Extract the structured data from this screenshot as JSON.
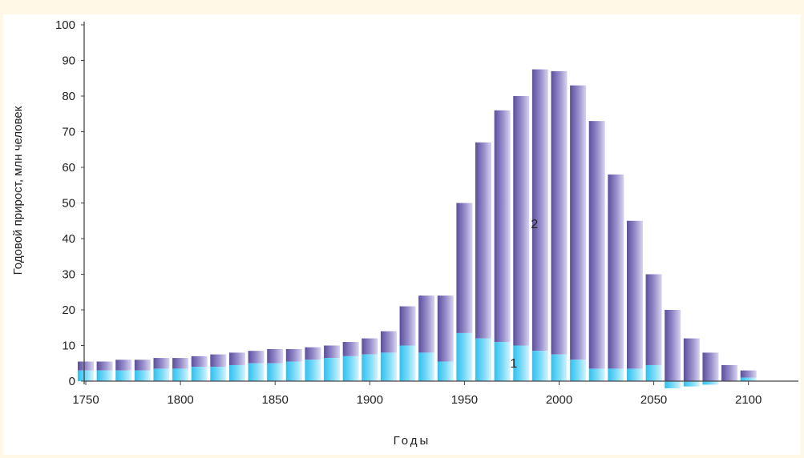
{
  "chart_data": {
    "type": "bar",
    "stacked": true,
    "xlabel": "Годы",
    "ylabel": "Годовой прирост, млн человек",
    "ylim": [
      0,
      100
    ],
    "xlim": [
      1750,
      2125
    ],
    "x_ticks": [
      1750,
      1800,
      1850,
      1900,
      1950,
      2000,
      2050,
      2100
    ],
    "y_ticks": [
      0,
      10,
      20,
      30,
      40,
      50,
      60,
      70,
      80,
      90,
      100
    ],
    "grid": false,
    "legend": "none",
    "series": [
      {
        "name": "1",
        "color": "#5fd0f5"
      },
      {
        "name": "2",
        "color": "#7e72b8"
      }
    ],
    "bars": [
      {
        "x": 1750,
        "s1": 3,
        "total": 5.5
      },
      {
        "x": 1760,
        "s1": 3,
        "total": 5.5
      },
      {
        "x": 1770,
        "s1": 3,
        "total": 6
      },
      {
        "x": 1780,
        "s1": 3,
        "total": 6
      },
      {
        "x": 1790,
        "s1": 3.5,
        "total": 6.5
      },
      {
        "x": 1800,
        "s1": 3.5,
        "total": 6.5
      },
      {
        "x": 1810,
        "s1": 4,
        "total": 7
      },
      {
        "x": 1820,
        "s1": 4,
        "total": 7.5
      },
      {
        "x": 1830,
        "s1": 4.5,
        "total": 8
      },
      {
        "x": 1840,
        "s1": 5,
        "total": 8.5
      },
      {
        "x": 1850,
        "s1": 5,
        "total": 9
      },
      {
        "x": 1860,
        "s1": 5.5,
        "total": 9
      },
      {
        "x": 1870,
        "s1": 6,
        "total": 9.5
      },
      {
        "x": 1880,
        "s1": 6.5,
        "total": 10
      },
      {
        "x": 1890,
        "s1": 7,
        "total": 11
      },
      {
        "x": 1900,
        "s1": 7.5,
        "total": 12
      },
      {
        "x": 1910,
        "s1": 8,
        "total": 14
      },
      {
        "x": 1920,
        "s1": 10,
        "total": 21
      },
      {
        "x": 1930,
        "s1": 8,
        "total": 24
      },
      {
        "x": 1940,
        "s1": 5.5,
        "total": 24
      },
      {
        "x": 1950,
        "s1": 13.5,
        "total": 50
      },
      {
        "x": 1960,
        "s1": 12,
        "total": 67
      },
      {
        "x": 1970,
        "s1": 11,
        "total": 76
      },
      {
        "x": 1980,
        "s1": 10,
        "total": 80
      },
      {
        "x": 1990,
        "s1": 8.5,
        "total": 87.5
      },
      {
        "x": 2000,
        "s1": 7.5,
        "total": 87
      },
      {
        "x": 2010,
        "s1": 6,
        "total": 83
      },
      {
        "x": 2020,
        "s1": 3.5,
        "total": 73
      },
      {
        "x": 2030,
        "s1": 3.5,
        "total": 58
      },
      {
        "x": 2040,
        "s1": 3.5,
        "total": 45
      },
      {
        "x": 2050,
        "s1": 4.5,
        "total": 30
      },
      {
        "x": 2060,
        "s1": -2,
        "total": 20
      },
      {
        "x": 2070,
        "s1": -1.5,
        "total": 12
      },
      {
        "x": 2080,
        "s1": -1,
        "total": 8
      },
      {
        "x": 2090,
        "s1": 0,
        "total": 4.5
      },
      {
        "x": 2100,
        "s1": 1,
        "total": 3
      }
    ],
    "annotations": [
      {
        "text": "2",
        "x": 1987,
        "y": 44
      },
      {
        "text": "1",
        "x": 1976,
        "y": 5
      }
    ]
  }
}
